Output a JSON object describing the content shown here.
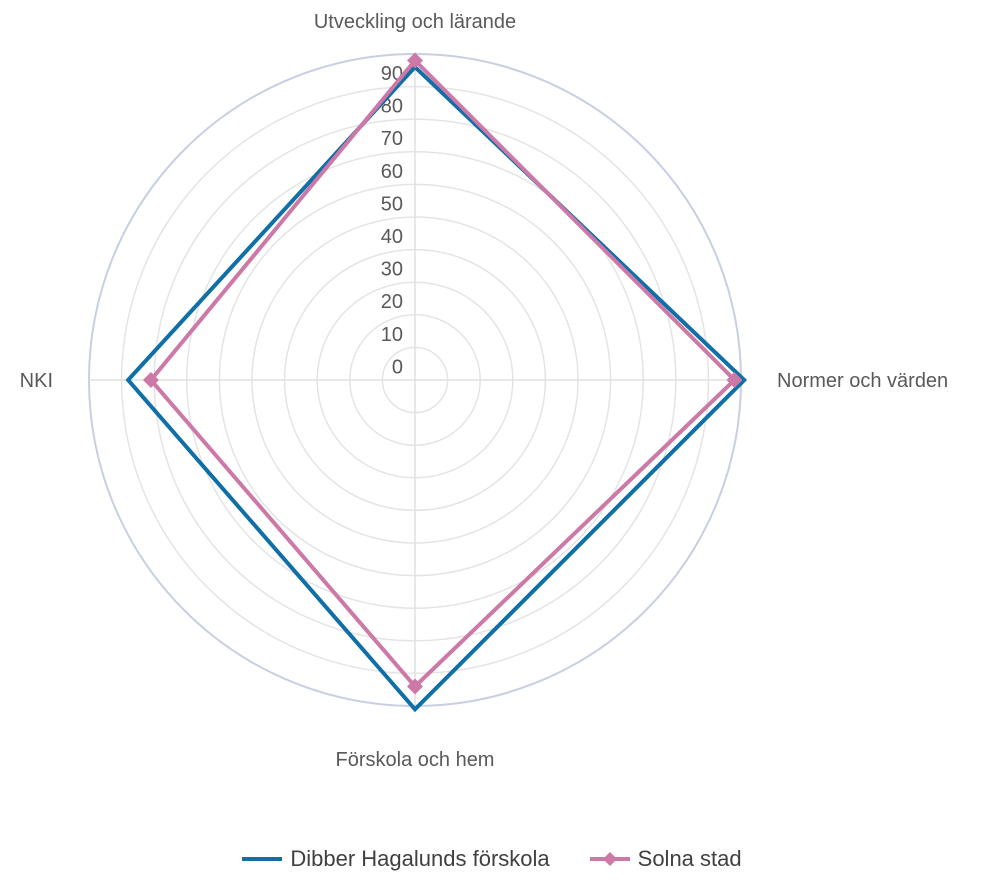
{
  "chart_data": {
    "type": "radar",
    "title": "",
    "axes": [
      "Utveckling och lärande",
      "Normer och värden",
      "Förskola och hem",
      "NKI"
    ],
    "rmax": 90,
    "ticks": [
      "0",
      "10",
      "20",
      "30",
      "40",
      "50",
      "60",
      "70",
      "80",
      "90"
    ],
    "grid": true,
    "legend_position": "bottom",
    "series": [
      {
        "name": "Dibber Hagalunds förskola",
        "values": [
          86,
          91,
          91,
          78
        ],
        "color": "#0f6fa6",
        "marker": "none"
      },
      {
        "name": "Solna stad",
        "values": [
          88,
          88,
          84,
          71
        ],
        "color": "#cc79a7",
        "marker": "diamond"
      }
    ]
  }
}
